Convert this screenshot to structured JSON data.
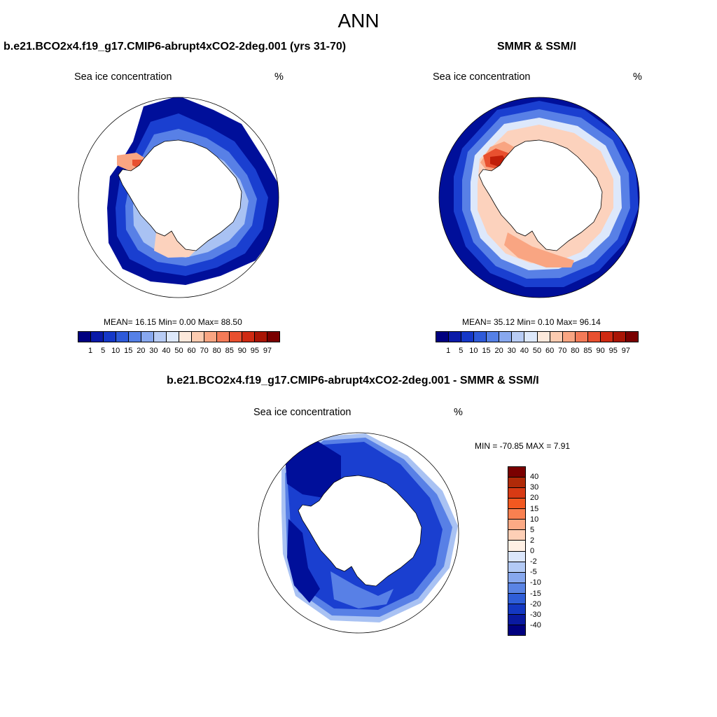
{
  "title": "ANN",
  "panels": {
    "model": {
      "title": "b.e21.BCO2x4.f19_g17.CMIP6-abrupt4xCO2-2deg.001 (yrs 31-70)",
      "variable": "Sea ice concentration",
      "units": "%",
      "stats": "MEAN=  16.15  Min=   0.00  Max=  88.50"
    },
    "obs": {
      "title": "SMMR & SSM/I",
      "variable": "Sea ice concentration",
      "units": "%",
      "stats": "MEAN=  35.12  Min=   0.10  Max=  96.14"
    },
    "diff": {
      "title": "b.e21.BCO2x4.f19_g17.CMIP6-abrupt4xCO2-2deg.001 - SMMR & SSM/I",
      "variable": "Sea ice concentration",
      "units": "%",
      "stats": "MIN = -70.85 MAX =   7.91"
    }
  },
  "colorbar_abs": {
    "labels": [
      "1",
      "5",
      "10",
      "15",
      "20",
      "30",
      "40",
      "50",
      "60",
      "70",
      "80",
      "85",
      "90",
      "95",
      "97"
    ],
    "colors": [
      "#000080",
      "#0a1aa8",
      "#1538c8",
      "#2e5ad9",
      "#5580e6",
      "#88a8ef",
      "#b8ccf5",
      "#dde8fb",
      "#fde9dc",
      "#fccbb0",
      "#f9a582",
      "#f47b58",
      "#e8502f",
      "#cf2a12",
      "#a91505",
      "#7a0000"
    ]
  },
  "colorbar_diff": {
    "labels": [
      "40",
      "30",
      "20",
      "15",
      "10",
      "5",
      "2",
      "0",
      "-2",
      "-5",
      "-10",
      "-15",
      "-20",
      "-30",
      "-40"
    ],
    "colors": [
      "#7a0000",
      "#b02a08",
      "#d83a14",
      "#f25820",
      "#f98050",
      "#fcaa85",
      "#fdcfb6",
      "#fff0e4",
      "#dbe6fb",
      "#b3caf5",
      "#87a8ee",
      "#5a84e4",
      "#2f5ed8",
      "#1438c2",
      "#0a1aa0",
      "#000080"
    ]
  },
  "map_colors": {
    "deep_blue": "#000f9a",
    "blue": "#1a3fd0",
    "mid_blue": "#5880e6",
    "light_blue": "#a9c2f3",
    "pale_blue": "#dde8fb",
    "pale_red": "#fcd2bd",
    "light_red": "#f9a582",
    "red": "#e8502f",
    "dark_red": "#c01e08",
    "land": "#ffffff"
  }
}
